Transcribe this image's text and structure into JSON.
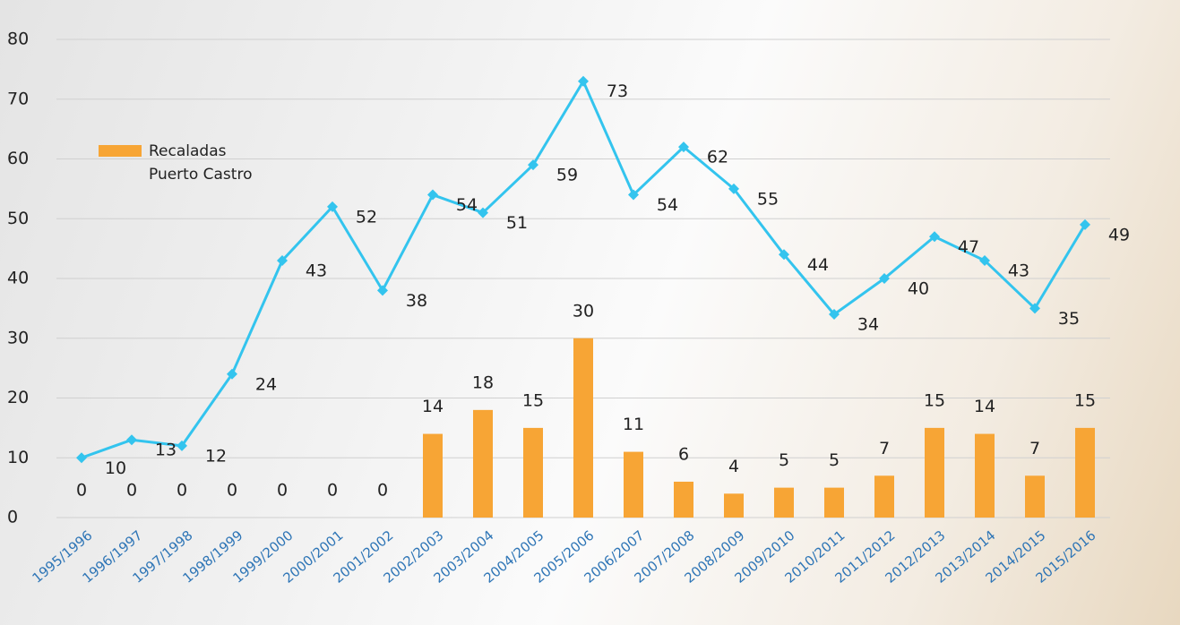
{
  "chart_data": {
    "type": "bar",
    "categories": [
      "1995/1996",
      "1996/1997",
      "1997/1998",
      "1998/1999",
      "1999/2000",
      "2000/2001",
      "2001/2002",
      "2002/2003",
      "2003/2004",
      "2004/2005",
      "2005/2006",
      "2006/2007",
      "2007/2008",
      "2008/2009",
      "2009/2010",
      "2010/2011",
      "2011/2012",
      "2012/2013",
      "2013/2014",
      "2014/2015",
      "2015/2016"
    ],
    "series": [
      {
        "name": "Recaladas Puerto Castro",
        "type": "bar",
        "color": "#f7a535",
        "values": [
          0,
          0,
          0,
          0,
          0,
          0,
          0,
          14,
          18,
          15,
          30,
          11,
          6,
          4,
          5,
          5,
          7,
          15,
          14,
          7,
          15
        ]
      },
      {
        "type": "line",
        "color": "#33c4ee",
        "values": [
          10,
          13,
          12,
          24,
          43,
          52,
          38,
          54,
          51,
          59,
          73,
          54,
          62,
          55,
          44,
          34,
          40,
          47,
          43,
          35,
          49
        ]
      }
    ],
    "ylim": [
      0,
      80
    ],
    "yticks": [
      0,
      10,
      20,
      30,
      40,
      50,
      60,
      70,
      80
    ],
    "grid": true,
    "legend": "left"
  }
}
